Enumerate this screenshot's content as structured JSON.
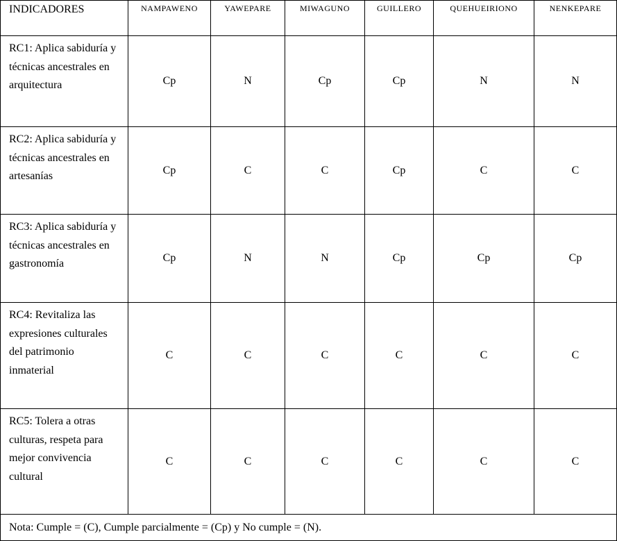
{
  "table": {
    "header": [
      "INDICADORES",
      "NAMPAWENO",
      "YAWEPARE",
      "MIWAGUNO",
      "GUILLERO",
      "QUEHUEIRIONO",
      "NENKEPARE"
    ],
    "rows": [
      [
        "RC1: Aplica sabiduría y técnicas ancestrales en arquitectura",
        "Cp",
        "N",
        "Cp",
        "Cp",
        "N",
        "N"
      ],
      [
        "RC2: Aplica sabiduría y técnicas ancestrales en artesanías",
        "Cp",
        "C",
        "C",
        "Cp",
        "C",
        "C"
      ],
      [
        "RC3: Aplica sabiduría y técnicas ancestrales en gastronomía",
        "Cp",
        "N",
        "N",
        "Cp",
        "Cp",
        "Cp"
      ],
      [
        "RC4: Revitaliza las expresiones culturales del patrimonio inmaterial",
        "C",
        "C",
        "C",
        "C",
        "C",
        "C"
      ],
      [
        "RC5: Tolera a otras culturas, respeta para mejor convivencia cultural",
        "C",
        "C",
        "C",
        "C",
        "C",
        "C"
      ]
    ],
    "note": "Nota: Cumple = (C), Cumple parcialmente = (Cp) y No cumple = (N)."
  }
}
